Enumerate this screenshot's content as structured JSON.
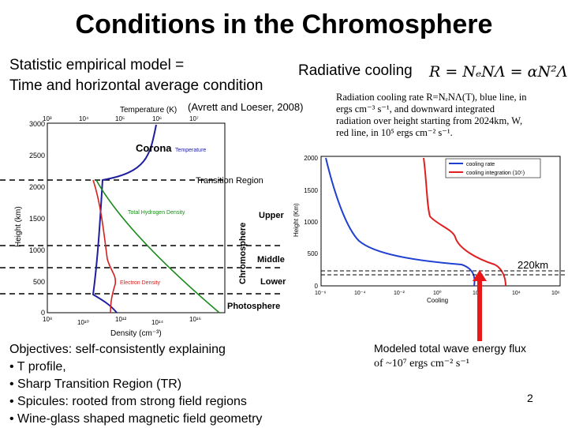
{
  "title": "Conditions in the Chromosphere",
  "model": {
    "line1": "Statistic empirical model =",
    "line2": "Time and horizontal average condition"
  },
  "radiative": {
    "label": "Radiative cooling",
    "formula": "R = NₑNΛ = αN²Λ"
  },
  "caption": {
    "l1": "Radiation cooling rate R=NₑNΛ(T), blue line, in",
    "l2": "ergs cm⁻³ s⁻¹, and downward integrated",
    "l3": "radiation over height starting from 2024km, W,",
    "l4": "red line, in 10⁵ ergs cm⁻² s⁻¹."
  },
  "left_plot": {
    "credit": "(Avrett and Loeser, 2008)",
    "top_axis_label": "Temperature (K)",
    "bottom_axis_label": "Density (cm⁻³)",
    "y_axis_label": "Height (km)",
    "top_ticks": [
      "10³",
      "10⁴",
      "10⁵",
      "10⁶",
      "10⁷"
    ],
    "bottom_ticks": [
      "10⁸",
      "10¹⁰",
      "10¹²",
      "10¹⁴",
      "10¹⁶"
    ],
    "y_ticks": [
      "0",
      "500",
      "1000",
      "1500",
      "2000",
      "2500",
      "3000"
    ],
    "regions": {
      "corona": "Corona",
      "transition": "Transition Region",
      "upper": "Upper",
      "middle": "Middle",
      "lower": "Lower",
      "photosphere": "Photosphere",
      "chromosphere": "Chromosphere"
    },
    "legend": {
      "temperature": "Temperature",
      "hydrogen": "Total Hydrogen Density",
      "electron": "Electron Density"
    },
    "colors": {
      "temperature": "#1f1f9e",
      "hydrogen": "#1a8a1a",
      "electron": "#d42020"
    }
  },
  "right_plot": {
    "x_axis_label": "Cooling",
    "y_axis_label": "Height (Km)",
    "legend": {
      "blue": "cooling rate",
      "red": "cooling integration (10⁵)"
    },
    "x_ticks": [
      "10⁻⁶",
      "10⁻⁴",
      "10⁻²",
      "10⁰",
      "10²",
      "10⁴",
      "10⁶"
    ],
    "y_ticks": [
      "0",
      "500",
      "1000",
      "1500",
      "2000"
    ],
    "marker_label": "220km",
    "colors": {
      "blue": "#1f3fd0",
      "red": "#e02020"
    }
  },
  "objectives": {
    "l1": "Objectives: self-consistently explaining",
    "l2": "• T profile,",
    "l3": "• Sharp Transition Region (TR)",
    "l4": "• Spicules: rooted from strong field regions",
    "l5": "• Wine-glass shaped magnetic field geometry"
  },
  "modeled": {
    "l1": "Modeled total wave energy flux",
    "l2": "of  ~10⁷ ergs cm⁻² s⁻¹"
  },
  "page_number": "2"
}
